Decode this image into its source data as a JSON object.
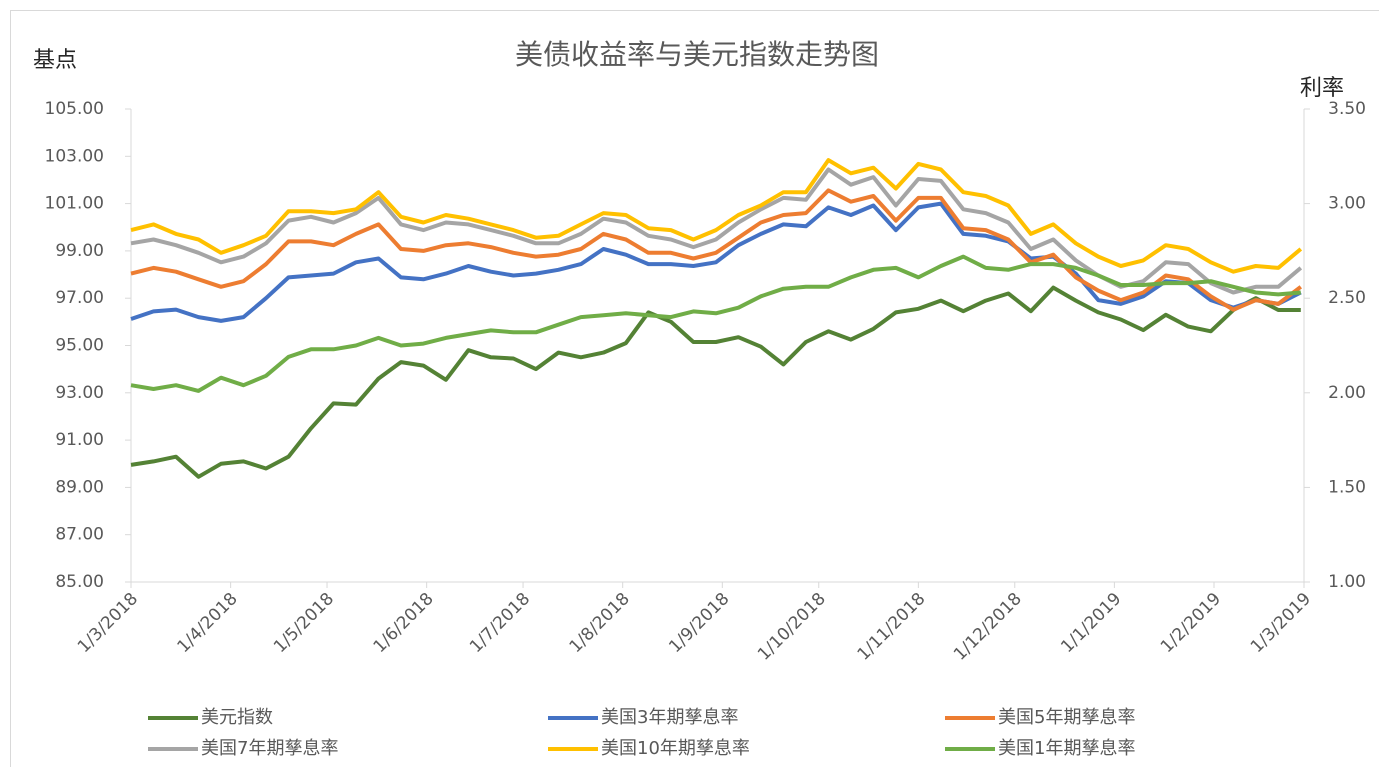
{
  "chart_data": {
    "type": "line",
    "title": "美债收益率与美元指数走势图",
    "y_label": "基点",
    "y2_label": "利率",
    "x": [
      "1/3/2018",
      "8/3/2018",
      "15/3/2018",
      "22/3/2018",
      "29/3/2018",
      "5/4/2018",
      "12/4/2018",
      "19/4/2018",
      "26/4/2018",
      "3/5/2018",
      "10/5/2018",
      "17/5/2018",
      "24/5/2018",
      "31/5/2018",
      "7/6/2018",
      "14/6/2018",
      "21/6/2018",
      "28/6/2018",
      "5/7/2018",
      "12/7/2018",
      "19/7/2018",
      "26/7/2018",
      "2/8/2018",
      "9/8/2018",
      "16/8/2018",
      "23/8/2018",
      "30/8/2018",
      "6/9/2018",
      "13/9/2018",
      "20/9/2018",
      "27/9/2018",
      "4/10/2018",
      "11/10/2018",
      "18/10/2018",
      "25/10/2018",
      "1/11/2018",
      "8/11/2018",
      "15/11/2018",
      "22/11/2018",
      "29/11/2018",
      "6/12/2018",
      "13/12/2018",
      "20/12/2018",
      "27/12/2018",
      "3/1/2019",
      "10/1/2019",
      "17/1/2019",
      "24/1/2019",
      "31/1/2019",
      "7/2/2019",
      "14/2/2019",
      "21/2/2019",
      "28/2/2019"
    ],
    "xlim": [
      "1/3/2018",
      "1/3/2019"
    ],
    "xticks": [
      "1/3/2018",
      "1/4/2018",
      "1/5/2018",
      "1/6/2018",
      "1/7/2018",
      "1/8/2018",
      "1/9/2018",
      "1/10/2018",
      "1/11/2018",
      "1/12/2018",
      "1/1/2019",
      "1/2/2019",
      "1/3/2019"
    ],
    "ylim": [
      85,
      105
    ],
    "yticks": [
      {
        "value": 85,
        "label": "85.00"
      },
      {
        "value": 87,
        "label": "87.00"
      },
      {
        "value": 89,
        "label": "89.00"
      },
      {
        "value": 91,
        "label": "91.00"
      },
      {
        "value": 93,
        "label": "93.00"
      },
      {
        "value": 95,
        "label": "95.00"
      },
      {
        "value": 97,
        "label": "97.00"
      },
      {
        "value": 99,
        "label": "99.00"
      },
      {
        "value": 101,
        "label": "101.00"
      },
      {
        "value": 103,
        "label": "103.00"
      },
      {
        "value": 105,
        "label": "105.00"
      }
    ],
    "y2lim": [
      1,
      3.5
    ],
    "y2ticks": [
      {
        "value": 1,
        "label": "1.00"
      },
      {
        "value": 1.5,
        "label": "1.50"
      },
      {
        "value": 2,
        "label": "2.00"
      },
      {
        "value": 2.5,
        "label": "2.50"
      },
      {
        "value": 3,
        "label": "3.00"
      },
      {
        "value": 3.5,
        "label": "3.50"
      }
    ],
    "grid": false,
    "series": [
      {
        "name": "美元指数",
        "color": "#548235",
        "values": [
          89.95,
          90.1,
          90.3,
          89.45,
          90.0,
          90.1,
          89.8,
          90.3,
          91.5,
          92.55,
          92.5,
          93.6,
          94.3,
          94.15,
          93.55,
          94.8,
          94.5,
          94.45,
          94.0,
          94.7,
          94.5,
          94.7,
          95.1,
          96.4,
          96.0,
          95.15,
          95.15,
          95.35,
          94.95,
          94.2,
          95.15,
          95.6,
          95.25,
          95.7,
          96.4,
          96.55,
          96.9,
          96.45,
          96.9,
          97.2,
          96.45,
          97.45,
          96.9,
          96.4,
          96.1,
          95.65,
          96.3,
          95.8,
          95.6,
          96.5,
          97.0,
          96.5,
          96.5
        ]
      },
      {
        "name": "美国3年期孳息率",
        "color": "#4472c4",
        "axis": "y2",
        "values": [
          2.39,
          2.43,
          2.44,
          2.4,
          2.38,
          2.4,
          2.5,
          2.61,
          2.62,
          2.63,
          2.69,
          2.71,
          2.61,
          2.6,
          2.63,
          2.67,
          2.64,
          2.62,
          2.63,
          2.65,
          2.68,
          2.76,
          2.73,
          2.68,
          2.68,
          2.67,
          2.69,
          2.78,
          2.84,
          2.89,
          2.88,
          2.98,
          2.94,
          2.99,
          2.86,
          2.98,
          3.0,
          2.84,
          2.83,
          2.8,
          2.71,
          2.72,
          2.63,
          2.49,
          2.47,
          2.51,
          2.59,
          2.58,
          2.49,
          2.45,
          2.49,
          2.47,
          2.53
        ]
      },
      {
        "name": "美国5年期孳息率",
        "color": "#ed7d31",
        "axis": "y2",
        "values": [
          2.63,
          2.66,
          2.64,
          2.6,
          2.56,
          2.59,
          2.68,
          2.8,
          2.8,
          2.78,
          2.84,
          2.89,
          2.76,
          2.75,
          2.78,
          2.79,
          2.77,
          2.74,
          2.72,
          2.73,
          2.76,
          2.84,
          2.81,
          2.74,
          2.74,
          2.71,
          2.74,
          2.82,
          2.9,
          2.94,
          2.95,
          3.07,
          3.01,
          3.04,
          2.91,
          3.03,
          3.03,
          2.87,
          2.86,
          2.81,
          2.69,
          2.73,
          2.61,
          2.54,
          2.49,
          2.53,
          2.62,
          2.6,
          2.51,
          2.44,
          2.49,
          2.47,
          2.56
        ]
      },
      {
        "name": "美国7年期孳息率",
        "color": "#a5a5a5",
        "axis": "y2",
        "values": [
          2.79,
          2.81,
          2.78,
          2.74,
          2.69,
          2.72,
          2.79,
          2.91,
          2.93,
          2.9,
          2.95,
          3.03,
          2.89,
          2.86,
          2.9,
          2.89,
          2.86,
          2.83,
          2.79,
          2.79,
          2.84,
          2.92,
          2.9,
          2.83,
          2.81,
          2.77,
          2.81,
          2.9,
          2.97,
          3.03,
          3.02,
          3.18,
          3.1,
          3.14,
          2.99,
          3.13,
          3.12,
          2.97,
          2.95,
          2.9,
          2.76,
          2.81,
          2.7,
          2.62,
          2.56,
          2.59,
          2.69,
          2.68,
          2.58,
          2.53,
          2.56,
          2.56,
          2.66
        ]
      },
      {
        "name": "美国10年期孳息率",
        "color": "#ffc000",
        "axis": "y2",
        "values": [
          2.86,
          2.89,
          2.84,
          2.81,
          2.74,
          2.78,
          2.83,
          2.96,
          2.96,
          2.95,
          2.97,
          3.06,
          2.93,
          2.9,
          2.94,
          2.92,
          2.89,
          2.86,
          2.82,
          2.83,
          2.89,
          2.95,
          2.94,
          2.87,
          2.86,
          2.81,
          2.86,
          2.94,
          2.99,
          3.06,
          3.06,
          3.23,
          3.16,
          3.19,
          3.08,
          3.21,
          3.18,
          3.06,
          3.04,
          2.99,
          2.84,
          2.89,
          2.79,
          2.72,
          2.67,
          2.7,
          2.78,
          2.76,
          2.69,
          2.64,
          2.67,
          2.66,
          2.76
        ]
      },
      {
        "name": "美国1年期孳息率",
        "color": "#70ad47",
        "axis": "y2",
        "values": [
          2.04,
          2.02,
          2.04,
          2.01,
          2.08,
          2.04,
          2.09,
          2.19,
          2.23,
          2.23,
          2.25,
          2.29,
          2.25,
          2.26,
          2.29,
          2.31,
          2.33,
          2.32,
          2.32,
          2.36,
          2.4,
          2.41,
          2.42,
          2.41,
          2.4,
          2.43,
          2.42,
          2.45,
          2.51,
          2.55,
          2.56,
          2.56,
          2.61,
          2.65,
          2.66,
          2.61,
          2.67,
          2.72,
          2.66,
          2.65,
          2.68,
          2.68,
          2.66,
          2.62,
          2.57,
          2.57,
          2.58,
          2.58,
          2.59,
          2.56,
          2.53,
          2.52,
          2.53
        ]
      }
    ]
  }
}
